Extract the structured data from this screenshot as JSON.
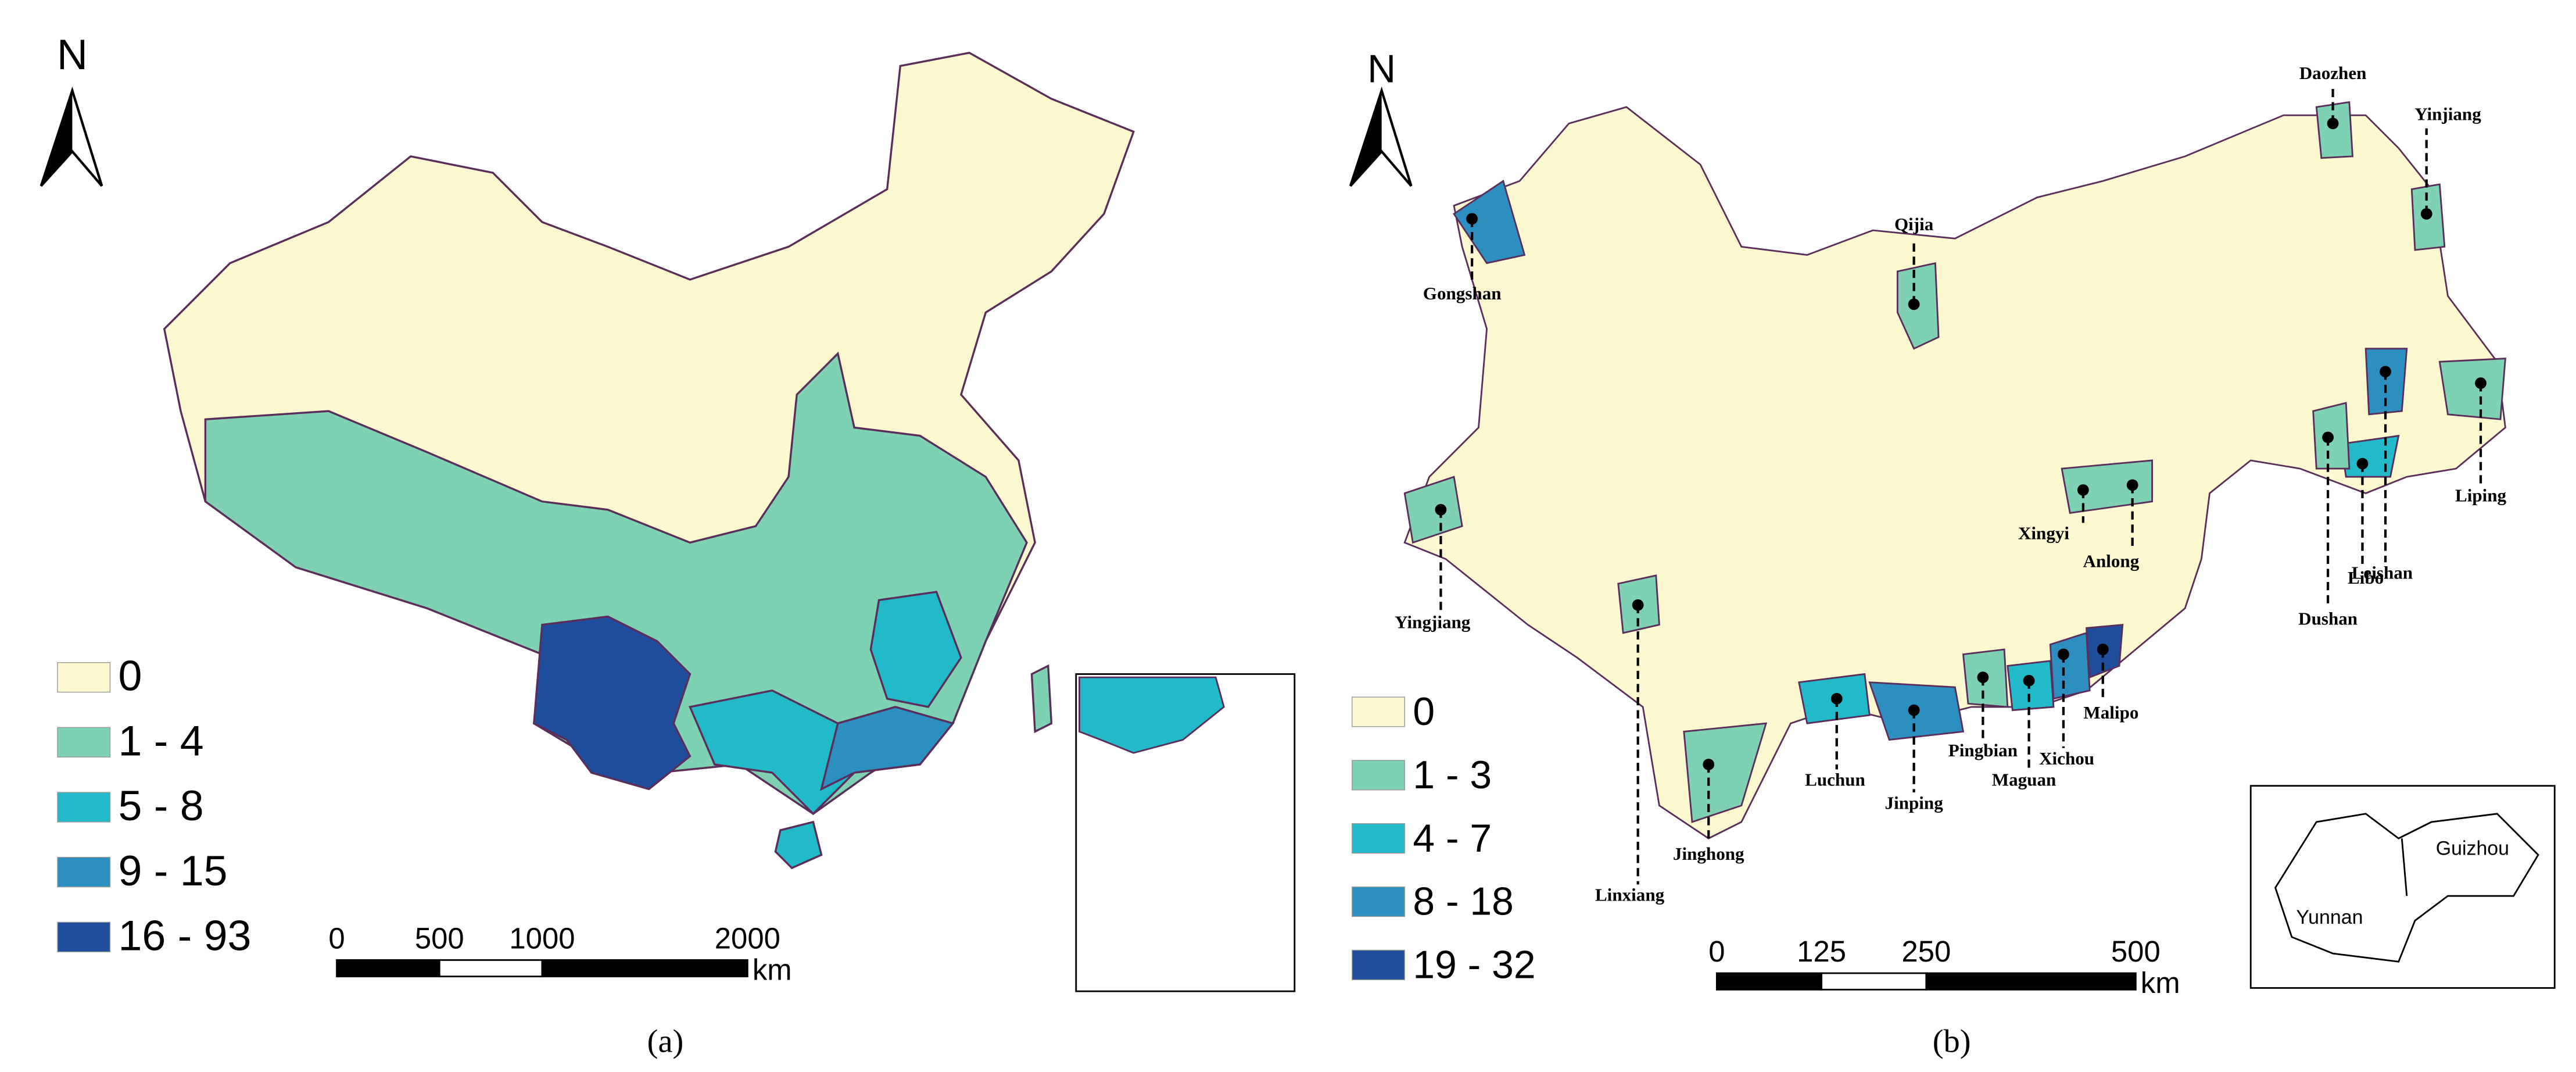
{
  "panel_a": {
    "north": "N",
    "legend": [
      "0",
      "1 - 4",
      "5 - 8",
      "9 - 15",
      "16 - 93"
    ],
    "scale_ticks": [
      0,
      500,
      1000,
      2000
    ],
    "scale_unit": "km",
    "caption": "(a)"
  },
  "panel_b": {
    "north": "N",
    "legend": [
      "0",
      "1 - 3",
      "4 - 7",
      "8 - 18",
      "19 - 32"
    ],
    "scale_ticks": [
      0,
      125,
      250,
      500
    ],
    "scale_unit": "km",
    "places": [
      "Gongshan",
      "Qijia",
      "Daozhen",
      "Yinjiang",
      "Yingjiang",
      "Xingyi",
      "Anlong",
      "Linxiang",
      "Jinghong",
      "Luchun",
      "Jinping",
      "Pingbian",
      "Maguan",
      "Xichou",
      "Malipo",
      "Liping",
      "Leishan",
      "Libo",
      "Dushan"
    ],
    "inset_labels": [
      "Yunnan",
      "Guizhou"
    ],
    "caption": "(b)"
  }
}
